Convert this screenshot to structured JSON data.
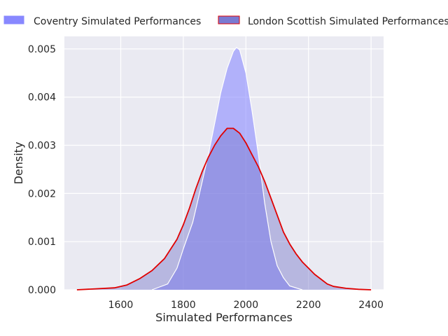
{
  "chart_data": {
    "type": "area",
    "title": "",
    "xlabel": "Simulated Performances",
    "ylabel": "Density",
    "xlim": [
      1420,
      2440
    ],
    "ylim": [
      0,
      0.00526
    ],
    "x_ticks": [
      1600,
      1800,
      2000,
      2200,
      2400
    ],
    "y_ticks": [
      0.0,
      0.001,
      0.002,
      0.003,
      0.004,
      0.005
    ],
    "x_tick_labels": [
      "1600",
      "1800",
      "2000",
      "2200",
      "2400"
    ],
    "y_tick_labels": [
      "0.000",
      "0.001",
      "0.002",
      "0.003",
      "0.004",
      "0.005"
    ],
    "grid": true,
    "legend_position": "top",
    "background": "#eaeaf2",
    "series": [
      {
        "name": "Coventry Simulated Performances",
        "fill": "#8888ff",
        "fill_opacity": 0.58,
        "line": "#ffffff",
        "points": [
          [
            1700,
            0.0
          ],
          [
            1750,
            0.00012
          ],
          [
            1780,
            0.00045
          ],
          [
            1800,
            0.00085
          ],
          [
            1830,
            0.0014
          ],
          [
            1850,
            0.00195
          ],
          [
            1880,
            0.0028
          ],
          [
            1900,
            0.00345
          ],
          [
            1920,
            0.0041
          ],
          [
            1940,
            0.0046
          ],
          [
            1960,
            0.00495
          ],
          [
            1970,
            0.00503
          ],
          [
            1980,
            0.00498
          ],
          [
            2000,
            0.0045
          ],
          [
            2020,
            0.0037
          ],
          [
            2040,
            0.0028
          ],
          [
            2060,
            0.0018
          ],
          [
            2080,
            0.001
          ],
          [
            2100,
            0.0005
          ],
          [
            2120,
            0.00025
          ],
          [
            2140,
            8e-05
          ],
          [
            2180,
            0.0
          ]
        ]
      },
      {
        "name": "London Scottish Simulated Performances",
        "fill": "#7070c8",
        "fill_opacity": 0.42,
        "line": "#e00000",
        "points": [
          [
            1460,
            0.0
          ],
          [
            1520,
            2e-05
          ],
          [
            1580,
            4e-05
          ],
          [
            1620,
            0.0001
          ],
          [
            1660,
            0.00023
          ],
          [
            1700,
            0.0004
          ],
          [
            1740,
            0.00065
          ],
          [
            1780,
            0.00105
          ],
          [
            1800,
            0.00135
          ],
          [
            1820,
            0.0017
          ],
          [
            1840,
            0.0021
          ],
          [
            1860,
            0.00245
          ],
          [
            1880,
            0.00275
          ],
          [
            1900,
            0.003
          ],
          [
            1920,
            0.0032
          ],
          [
            1940,
            0.00335
          ],
          [
            1960,
            0.00335
          ],
          [
            1980,
            0.00325
          ],
          [
            2000,
            0.00305
          ],
          [
            2020,
            0.0028
          ],
          [
            2040,
            0.00255
          ],
          [
            2060,
            0.00225
          ],
          [
            2080,
            0.0019
          ],
          [
            2100,
            0.00155
          ],
          [
            2120,
            0.0012
          ],
          [
            2140,
            0.00095
          ],
          [
            2160,
            0.00075
          ],
          [
            2180,
            0.00058
          ],
          [
            2200,
            0.00045
          ],
          [
            2220,
            0.00032
          ],
          [
            2240,
            0.00022
          ],
          [
            2260,
            0.00012
          ],
          [
            2280,
            7e-05
          ],
          [
            2320,
            3e-05
          ],
          [
            2360,
            1e-05
          ],
          [
            2400,
            0.0
          ]
        ]
      }
    ]
  }
}
